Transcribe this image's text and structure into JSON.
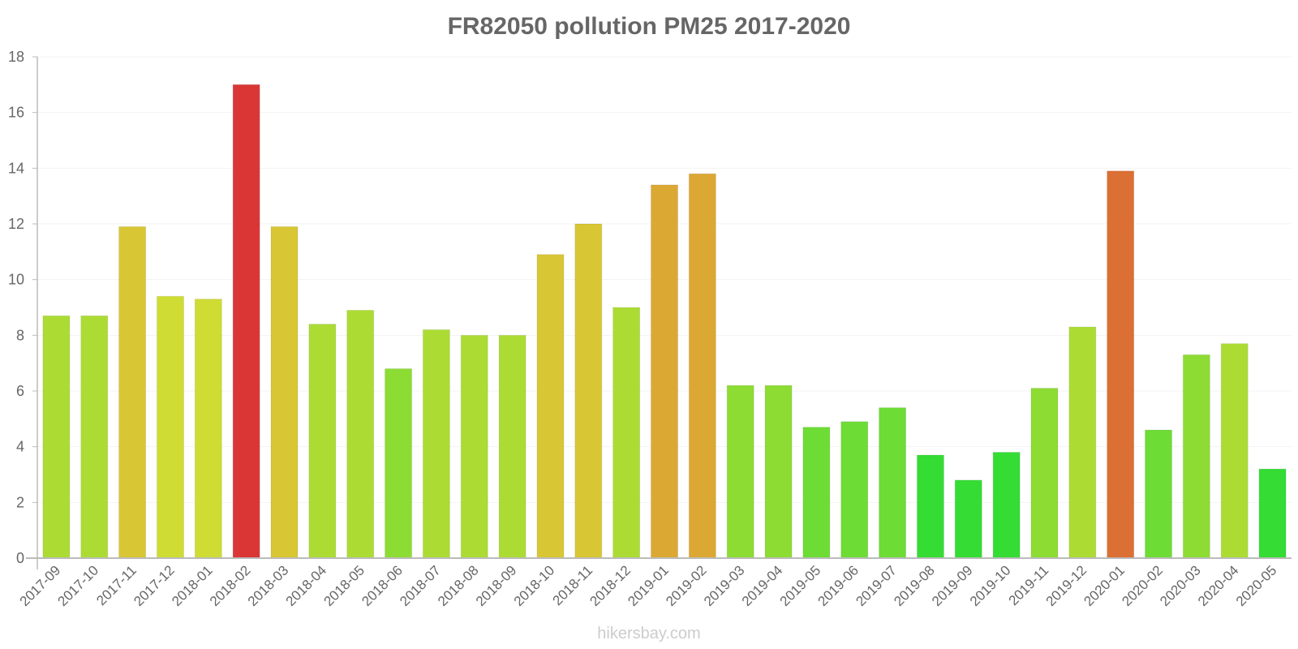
{
  "chart_data": {
    "type": "bar",
    "title": "FR82050 pollution PM25 2017-2020",
    "xlabel": "",
    "ylabel": "",
    "ylim": [
      0,
      18
    ],
    "yticks": [
      0,
      2,
      4,
      6,
      8,
      10,
      12,
      14,
      16,
      18
    ],
    "grid": true,
    "legend": null,
    "categories": [
      "2017-09",
      "2017-10",
      "2017-11",
      "2017-12",
      "2018-01",
      "2018-02",
      "2018-03",
      "2018-04",
      "2018-05",
      "2018-06",
      "2018-07",
      "2018-08",
      "2018-09",
      "2018-10",
      "2018-11",
      "2018-12",
      "2019-01",
      "2019-02",
      "2019-03",
      "2019-04",
      "2019-05",
      "2019-06",
      "2019-07",
      "2019-08",
      "2019-09",
      "2019-10",
      "2019-11",
      "2019-12",
      "2020-01",
      "2020-02",
      "2020-03",
      "2020-04",
      "2020-05"
    ],
    "values": [
      8.7,
      8.7,
      11.9,
      9.4,
      9.3,
      17.0,
      11.9,
      8.4,
      8.9,
      6.8,
      8.2,
      8.0,
      8.0,
      10.9,
      12.0,
      9.0,
      13.4,
      13.8,
      6.2,
      6.2,
      4.7,
      4.9,
      5.4,
      3.7,
      2.8,
      3.8,
      6.1,
      8.3,
      13.9,
      4.6,
      7.3,
      7.7,
      3.2
    ],
    "colors": [
      "#acdc34",
      "#acdc34",
      "#d8c634",
      "#cfdc34",
      "#cfdc34",
      "#da3636",
      "#d8c634",
      "#acdc34",
      "#acdc34",
      "#8ddc34",
      "#acdc34",
      "#acdc34",
      "#acdc34",
      "#d8c634",
      "#d8c634",
      "#acdc34",
      "#dca834",
      "#dca834",
      "#8ddc34",
      "#8ddc34",
      "#6ddc34",
      "#6ddc34",
      "#6ddc34",
      "#34dc34",
      "#34dc34",
      "#34dc34",
      "#8ddc34",
      "#acdc34",
      "#dc6f34",
      "#6ddc34",
      "#8ddc34",
      "#acdc34",
      "#34dc34"
    ]
  },
  "header": {
    "title": "FR82050 pollution PM25 2017-2020"
  },
  "footer": {
    "watermark": "hikersbay.com"
  }
}
